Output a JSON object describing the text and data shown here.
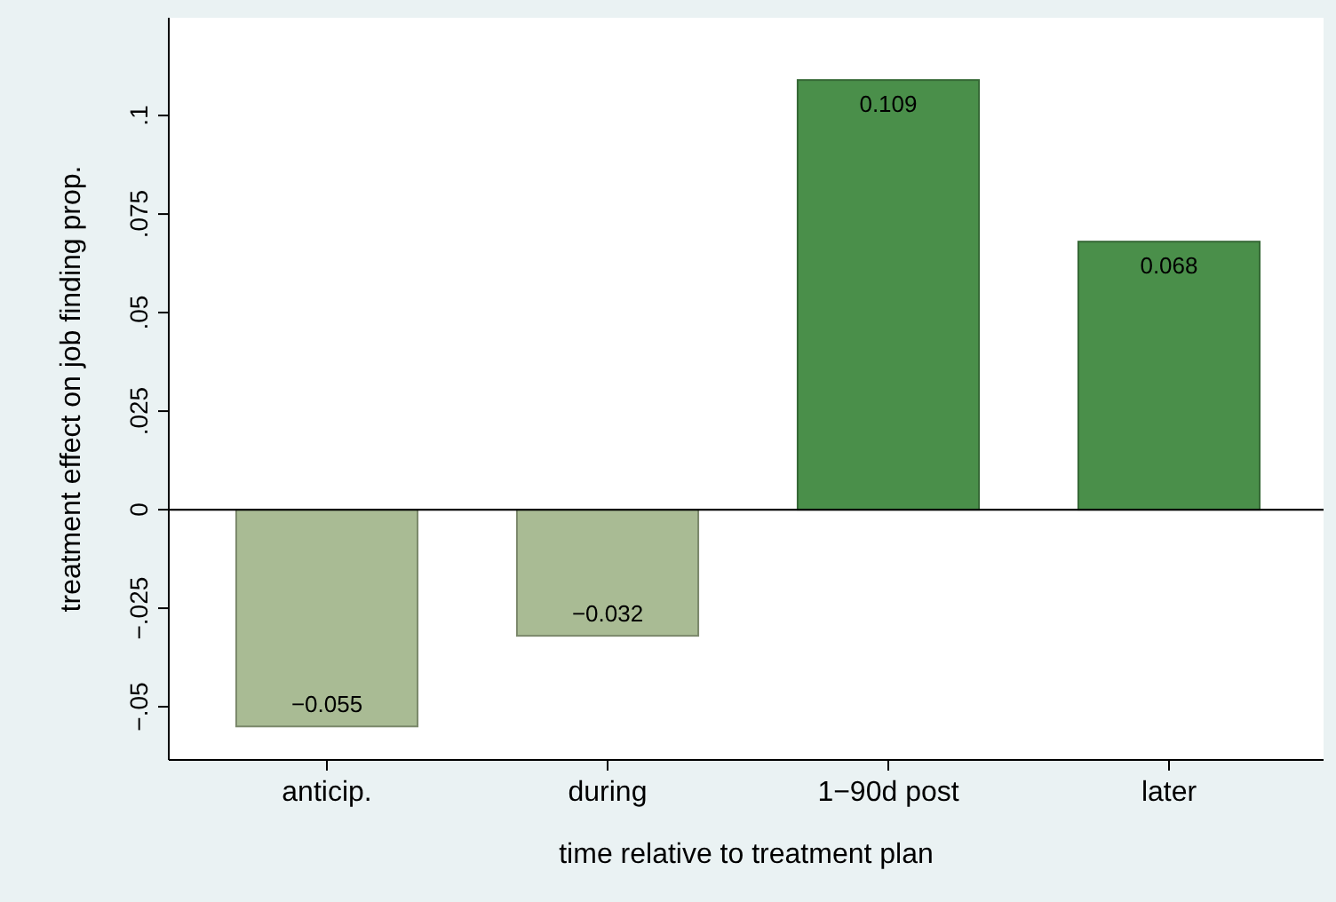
{
  "chart_data": {
    "type": "bar",
    "xlabel": "time relative to treatment plan",
    "ylabel": "treatment effect on job finding prop.",
    "categories": [
      "anticip.",
      "during",
      "1−90d post",
      "later"
    ],
    "values": [
      -0.055,
      -0.032,
      0.109,
      0.068
    ],
    "colors": [
      "#a9bb94",
      "#a9bb94",
      "#4a8f4a",
      "#4a8f4a"
    ],
    "value_labels": [
      "−0.055",
      "−0.032",
      "0.109",
      "0.068"
    ],
    "ylim": [
      -0.0635,
      0.1248
    ],
    "yticks": [
      {
        "value": -0.05,
        "label": "−.05"
      },
      {
        "value": -0.025,
        "label": "−.025"
      },
      {
        "value": 0,
        "label": "0"
      },
      {
        "value": 0.025,
        "label": ".025"
      },
      {
        "value": 0.05,
        "label": ".05"
      },
      {
        "value": 0.075,
        "label": ".075"
      },
      {
        "value": 0.1,
        "label": ".1"
      }
    ],
    "ref_lines": [
      {
        "axis": "y",
        "value": 0,
        "color": "#000000"
      }
    ],
    "grid": false
  }
}
